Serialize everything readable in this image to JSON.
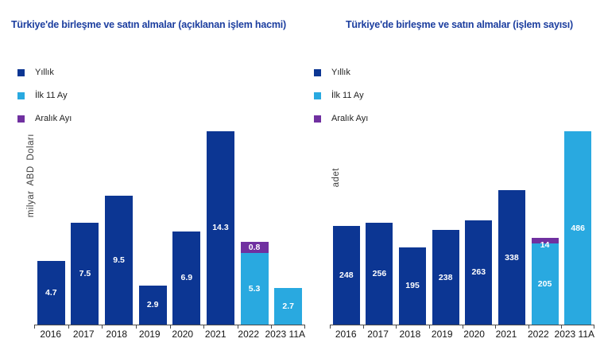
{
  "colors": {
    "title": "#1c3e9f",
    "axis": "#4a4a4a",
    "bar_label": "#ffffff",
    "yillik": "#0c3693",
    "ilk11ay": "#29a9e0",
    "aralik": "#7030a0"
  },
  "chart_data": [
    {
      "type": "bar",
      "stacked": true,
      "title": "Türkiye'de birleşme ve satın almalar (açıklanan işlem hacmi)",
      "ylabel": "milyar ABD Doları",
      "xlabel": "",
      "grid": false,
      "legend_position": "top-left",
      "legend": [
        "Yıllık",
        "İlk 11 Ay",
        "Aralık Ayı"
      ],
      "series_colors": {
        "Yıllık": "#0c3693",
        "İlk 11 Ay": "#29a9e0",
        "Aralık Ayı": "#7030a0"
      },
      "categories": [
        "2016",
        "2017",
        "2018",
        "2019",
        "2020",
        "2021",
        "2022",
        "2023 11A"
      ],
      "ylim": [
        0,
        14.7
      ],
      "bars": [
        {
          "category": "2016",
          "segments": [
            {
              "series": "Yıllık",
              "value": 4.7,
              "label": "4.7"
            }
          ]
        },
        {
          "category": "2017",
          "segments": [
            {
              "series": "Yıllık",
              "value": 7.5,
              "label": "7.5"
            }
          ]
        },
        {
          "category": "2018",
          "segments": [
            {
              "series": "Yıllık",
              "value": 9.5,
              "label": "9.5"
            }
          ]
        },
        {
          "category": "2019",
          "segments": [
            {
              "series": "Yıllık",
              "value": 2.9,
              "label": "2.9"
            }
          ]
        },
        {
          "category": "2020",
          "segments": [
            {
              "series": "Yıllık",
              "value": 6.9,
              "label": "6.9"
            }
          ]
        },
        {
          "category": "2021",
          "segments": [
            {
              "series": "Yıllık",
              "value": 14.3,
              "label": "14.3"
            }
          ]
        },
        {
          "category": "2022",
          "segments": [
            {
              "series": "İlk 11 Ay",
              "value": 5.3,
              "label": "5.3"
            },
            {
              "series": "Aralık Ayı",
              "value": 0.8,
              "label": "0.8"
            }
          ]
        },
        {
          "category": "2023 11A",
          "segments": [
            {
              "series": "İlk 11 Ay",
              "value": 2.7,
              "label": "2.7"
            }
          ]
        }
      ]
    },
    {
      "type": "bar",
      "stacked": true,
      "title": "Türkiye'de birleşme ve satın almalar (işlem sayısı)",
      "ylabel": "adet",
      "xlabel": "",
      "grid": false,
      "legend_position": "top-left",
      "legend": [
        "Yıllık",
        "İlk 11 Ay",
        "Aralık Ayı"
      ],
      "series_colors": {
        "Yıllık": "#0c3693",
        "İlk 11 Ay": "#29a9e0",
        "Aralık Ayı": "#7030a0"
      },
      "categories": [
        "2016",
        "2017",
        "2018",
        "2019",
        "2020",
        "2021",
        "2022",
        "2023 11A"
      ],
      "ylim": [
        0,
        500
      ],
      "bars": [
        {
          "category": "2016",
          "segments": [
            {
              "series": "Yıllık",
              "value": 248,
              "label": "248"
            }
          ]
        },
        {
          "category": "2017",
          "segments": [
            {
              "series": "Yıllık",
              "value": 256,
              "label": "256"
            }
          ]
        },
        {
          "category": "2018",
          "segments": [
            {
              "series": "Yıllık",
              "value": 195,
              "label": "195"
            }
          ]
        },
        {
          "category": "2019",
          "segments": [
            {
              "series": "Yıllık",
              "value": 238,
              "label": "238"
            }
          ]
        },
        {
          "category": "2020",
          "segments": [
            {
              "series": "Yıllık",
              "value": 263,
              "label": "263"
            }
          ]
        },
        {
          "category": "2021",
          "segments": [
            {
              "series": "Yıllık",
              "value": 338,
              "label": "338"
            }
          ]
        },
        {
          "category": "2022",
          "segments": [
            {
              "series": "İlk 11 Ay",
              "value": 205,
              "label": "205"
            },
            {
              "series": "Aralık Ayı",
              "value": 14,
              "label": "14"
            }
          ]
        },
        {
          "category": "2023 11A",
          "segments": [
            {
              "series": "İlk 11 Ay",
              "value": 486,
              "label": "486"
            }
          ]
        }
      ]
    }
  ]
}
